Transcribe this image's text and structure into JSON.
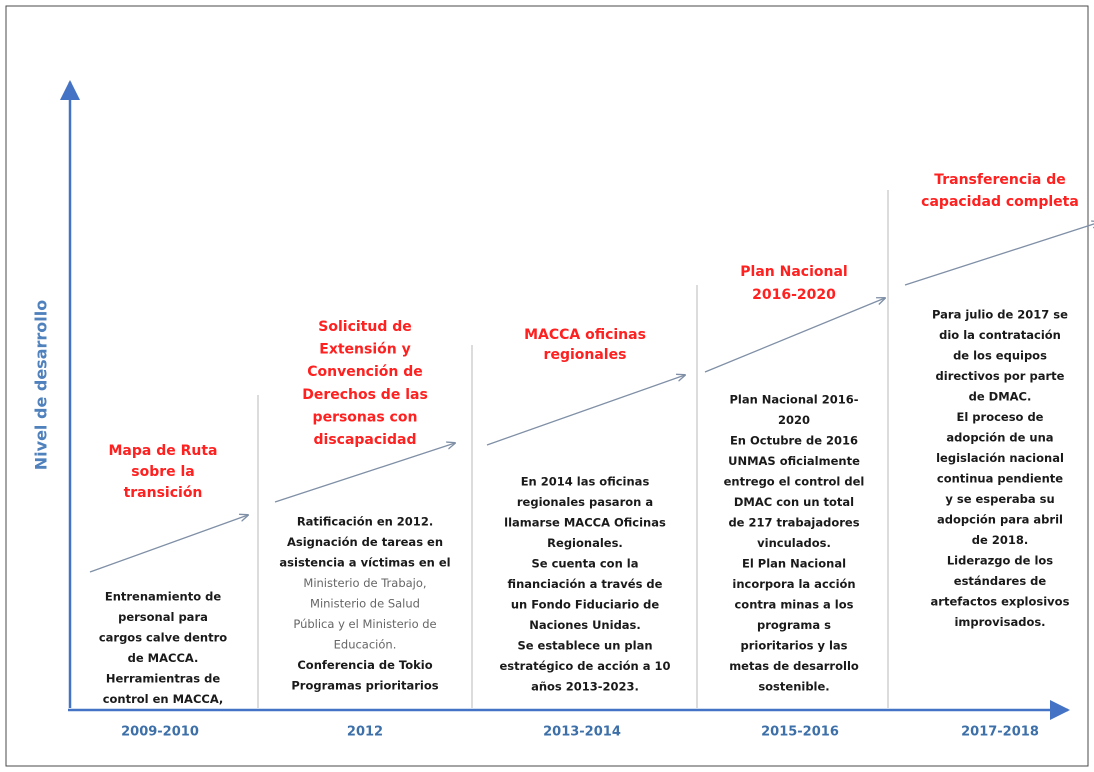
{
  "y_axis_label": "Nivel de desarrollo",
  "stages": [
    {
      "period": "2009-2010",
      "title": [
        "Mapa de Ruta",
        "sobre la",
        "transición"
      ],
      "description": [
        "Entrenamiento de",
        "personal para",
        "cargos calve dentro",
        "de MACCA.",
        "Herramientras de",
        "control en MACCA,"
      ]
    },
    {
      "period": "2012",
      "title": [
        "Solicitud de",
        "Extensión  y",
        "Convención de",
        "Derechos de las",
        "personas con",
        "discapacidad"
      ],
      "description": [
        "Ratificación en 2012.",
        "Asignación de tareas en",
        "asistencia a víctimas en el",
        "Ministerio de Trabajo,",
        "Ministerio de Salud",
        "Pública y el Ministerio de",
        "Educación.",
        "Conferencia de Tokio",
        "Programas prioritarios"
      ]
    },
    {
      "period": "2013-2014",
      "title": [
        "MACCA oficinas",
        "regionales"
      ],
      "description": [
        "En 2014 las oficinas",
        "regionales pasaron a",
        "llamarse MACCA Oficinas",
        "Regionales.",
        "Se cuenta con la",
        "financiación  a través de",
        "un Fondo Fiduciario de",
        "Naciones Unidas.",
        "Se establece un plan",
        "estratégico de acción a 10",
        "años 2013-2023."
      ]
    },
    {
      "period": "2015-2016",
      "title": [
        "Plan Nacional",
        "2016-2020"
      ],
      "description": [
        "Plan Nacional 2016-",
        "2020",
        "En Octubre de 2016",
        "UNMAS oficialmente",
        "entrego el control del",
        "DMAC con un total",
        "de 217 trabajadores",
        "vinculados.",
        "El Plan Nacional",
        "incorpora la acción",
        "contra minas a los",
        "programa s",
        "prioritarios y las",
        "metas de desarrollo",
        "sostenible."
      ]
    },
    {
      "period": "2017-2018",
      "title": [
        "Transferencia de",
        "capacidad completa"
      ],
      "description": [
        "Para julio de 2017 se",
        "dio la contratación",
        "de los equipos",
        "directivos por parte",
        "de DMAC.",
        "El proceso de",
        "adopción de una",
        "legislación nacional",
        "continua pendiente",
        "y se esperaba su",
        "adopción  para abril",
        "de 2018.",
        "Liderazgo de los",
        "estándares de",
        "artefactos explosivos",
        "improvisados."
      ]
    }
  ]
}
